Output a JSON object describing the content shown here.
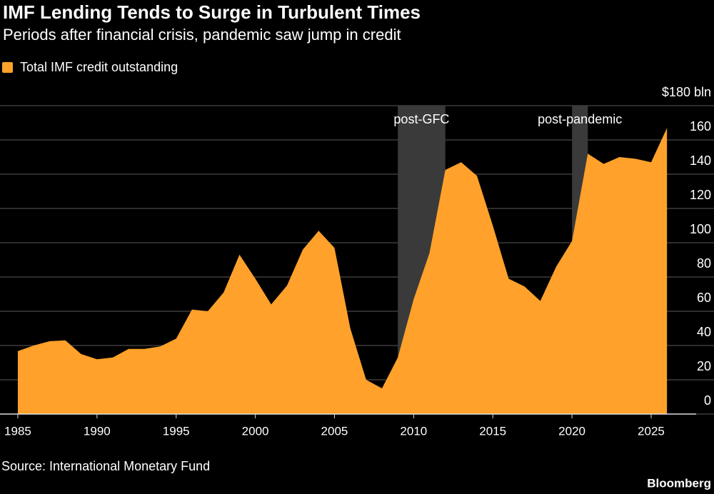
{
  "chart_data": {
    "type": "area",
    "title": "IMF Lending Tends to Surge in Turbulent Times",
    "subtitle": "Periods after financial crisis, pandemic saw jump in credit",
    "source": "Source: International Monetary Fund",
    "brand": "Bloomberg",
    "x": [
      1985,
      1986,
      1987,
      1988,
      1989,
      1990,
      1991,
      1992,
      1993,
      1994,
      1995,
      1996,
      1997,
      1998,
      1999,
      2000,
      2001,
      2002,
      2003,
      2004,
      2005,
      2006,
      2007,
      2008,
      2009,
      2010,
      2011,
      2012,
      2013,
      2014,
      2015,
      2016,
      2017,
      2018,
      2019,
      2020,
      2021,
      2022,
      2023,
      2024,
      2025,
      2026
    ],
    "series": [
      {
        "name": "Total IMF credit outstanding",
        "color": "#ffa12b",
        "values": [
          36.7,
          40,
          42.5,
          43,
          35,
          32,
          33,
          38,
          38,
          39.5,
          44,
          61,
          60,
          71,
          93,
          79,
          64,
          75,
          96,
          107,
          97,
          50,
          20,
          15,
          33,
          67,
          94,
          142.5,
          147,
          139,
          110,
          79,
          74.5,
          66,
          86,
          101,
          152,
          146,
          150,
          149,
          147,
          167
        ]
      }
    ],
    "shaded_periods": [
      {
        "label": "post-GFC",
        "start": 2009,
        "end": 2012
      },
      {
        "label": "post-pandemic",
        "start": 2020,
        "end": 2021
      }
    ],
    "xlim": [
      1984,
      2028
    ],
    "xticks": [
      1985,
      1990,
      1995,
      2000,
      2005,
      2010,
      2015,
      2020,
      2025
    ],
    "ylim": [
      0,
      180
    ],
    "yticks": [
      0,
      20,
      40,
      60,
      80,
      100,
      120,
      140,
      160,
      {
        "value": 180,
        "label": "$180 bln"
      }
    ],
    "grid": true
  }
}
